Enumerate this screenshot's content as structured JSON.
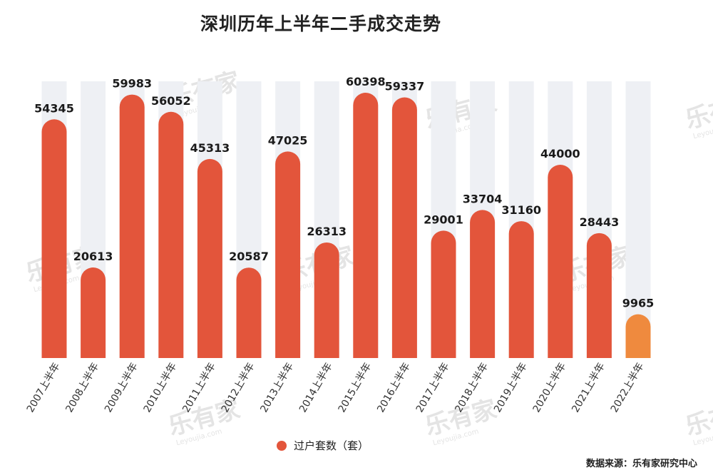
{
  "title": "深圳历年上半年二手成交走势",
  "legend_label": "过户套数（套）",
  "source": "数据来源：乐有家研究中心",
  "watermark": "乐有家",
  "watermark_sub": "Leyoujia.com",
  "colors": {
    "bar": "#e3553b",
    "bar_highlight": "#ef8a3e",
    "track": "#eef0f4"
  },
  "chart_data": {
    "type": "bar",
    "title": "深圳历年上半年二手成交走势",
    "categories": [
      "2007上半年",
      "2008上半年",
      "2009上半年",
      "2010上半年",
      "2011上半年",
      "2012上半年",
      "2013上半年",
      "2014上半年",
      "2015上半年",
      "2016上半年",
      "2017上半年",
      "2018上半年",
      "2019上半年",
      "2020上半年",
      "2021上半年",
      "2022上半年"
    ],
    "series": [
      {
        "name": "过户套数（套）",
        "values": [
          54345,
          20613,
          59983,
          56052,
          45313,
          20587,
          47025,
          26313,
          60398,
          59337,
          29001,
          33704,
          31160,
          44000,
          28443,
          9965
        ]
      }
    ],
    "highlight_index": 15,
    "ylim": [
      0,
      63000
    ],
    "grid": false,
    "legend": "bottom-center",
    "xlabel": "",
    "ylabel": ""
  }
}
